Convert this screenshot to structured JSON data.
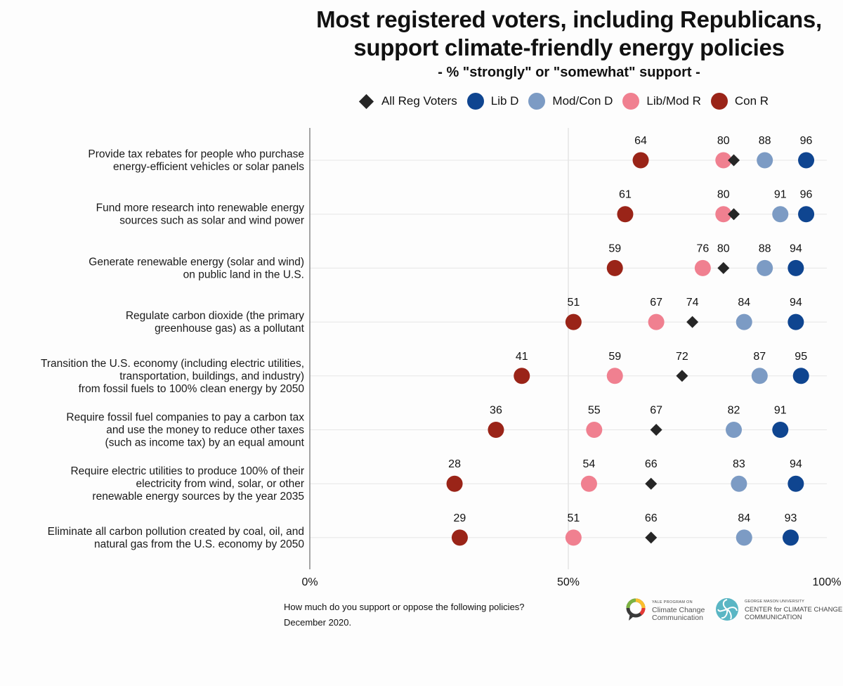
{
  "title_line1": "Most registered voters, including Republicans,",
  "title_line2": "support climate-friendly energy policies",
  "subtitle": "- % \"strongly\" or \"somewhat\" support -",
  "legend": [
    {
      "label": "All Reg Voters",
      "shape": "diamond",
      "color": "#262626"
    },
    {
      "label": "Lib D",
      "shape": "circle",
      "color": "#0f4590"
    },
    {
      "label": "Mod/Con D",
      "shape": "circle",
      "color": "#7c9bc4"
    },
    {
      "label": "Lib/Mod R",
      "shape": "circle",
      "color": "#f08090"
    },
    {
      "label": "Con R",
      "shape": "circle",
      "color": "#9a2418"
    }
  ],
  "chart_data": {
    "type": "dot",
    "xlim": [
      0,
      100
    ],
    "x_ticks": [
      "0%",
      "50%",
      "100%"
    ],
    "categories": [
      [
        "Provide tax rebates for people who purchase",
        "energy-efficient vehicles or solar panels"
      ],
      [
        "Fund more research into renewable energy",
        "sources such as solar and wind power"
      ],
      [
        "Generate renewable energy (solar and wind)",
        "on public land in the U.S."
      ],
      [
        "Regulate carbon dioxide (the primary",
        "greenhouse gas) as a pollutant"
      ],
      [
        "Transition the U.S. economy (including electric utilities,",
        "transportation, buildings, and industry)",
        "from fossil fuels to 100% clean energy by 2050"
      ],
      [
        "Require fossil fuel companies to pay a carbon tax",
        "and use the money to reduce other taxes",
        "(such as income tax) by an equal amount"
      ],
      [
        "Require electric utilities to produce 100% of their",
        "electricity from wind, solar, or other",
        "renewable energy sources by the year 2035"
      ],
      [
        "Eliminate all carbon pollution created by coal, oil, and",
        "natural gas from the U.S. economy by 2050"
      ]
    ],
    "series": [
      {
        "name": "All Reg Voters",
        "values": [
          82,
          82,
          80,
          74,
          72,
          67,
          66,
          66
        ]
      },
      {
        "name": "Lib D",
        "values": [
          96,
          96,
          94,
          94,
          95,
          91,
          94,
          93
        ]
      },
      {
        "name": "Mod/Con D",
        "values": [
          88,
          91,
          88,
          84,
          87,
          82,
          83,
          84
        ]
      },
      {
        "name": "Lib/Mod R",
        "values": [
          80,
          80,
          76,
          67,
          59,
          55,
          54,
          51
        ]
      },
      {
        "name": "Con R",
        "values": [
          64,
          61,
          59,
          51,
          41,
          36,
          28,
          29
        ]
      }
    ]
  },
  "footer": {
    "question": "How much do you support or oppose the following policies?",
    "date": "December 2020."
  },
  "logo_yale": {
    "small": "YALE PROGRAM ON",
    "line1": "Climate Change",
    "line2": "Communication"
  },
  "logo_gmu": {
    "small": "GEORGE MASON UNIVERSITY",
    "line1": "CENTER for CLIMATE CHANGE",
    "line2": "COMMUNICATION"
  }
}
